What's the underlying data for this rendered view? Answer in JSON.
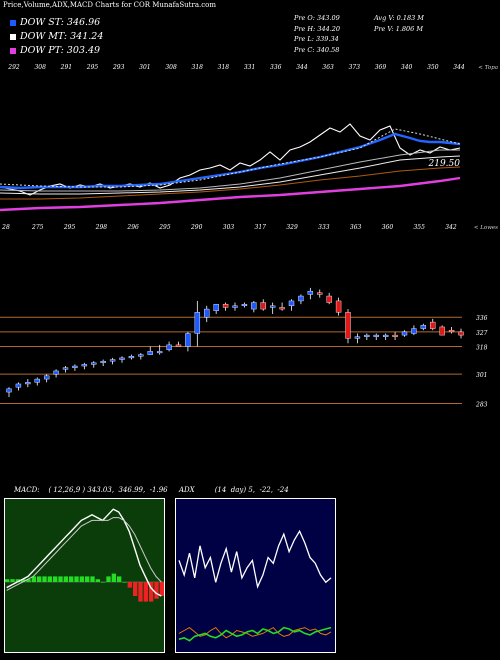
{
  "title": "Price,Volume,ADX,MACD Charts for COR MunafaSutra.com",
  "legend": [
    {
      "label": "DOW ST: 346.96",
      "color": "#1e5bff"
    },
    {
      "label": "DOW MT: 341.24",
      "color": "#ffffff"
    },
    {
      "label": "DOW PT: 303.49",
      "color": "#e040e0"
    }
  ],
  "stats_left": [
    "Pre  O: 343.09",
    "Pre  H: 344.20",
    "Pre  L: 339.34",
    "Pre  C: 340.58"
  ],
  "stats_right": [
    "Avg V: 0.183  M",
    "Pre  V: 1.806  M"
  ],
  "volume_axis_label": "< Topa",
  "lower_axis_label": "< Lowes",
  "top_labels": [
    "292",
    "308",
    "291",
    "295",
    "293",
    "301",
    "308",
    "318",
    "318",
    "331",
    "336",
    "344",
    "363",
    "373",
    "369",
    "340",
    "350",
    "344"
  ],
  "bottom_labels": [
    "28",
    "275",
    "295",
    "298",
    "296",
    "295",
    "290",
    "303",
    "317",
    "329",
    "333",
    "363",
    "360",
    "355",
    "342"
  ],
  "ema_value_label": "219.50",
  "chart_data": [
    {
      "type": "candlestick",
      "series": [
        {
          "name": "COR",
          "values": [
            {
              "o": 290,
              "h": 293,
              "l": 287,
              "c": 292
            },
            {
              "o": 293,
              "h": 296,
              "l": 291,
              "c": 295
            },
            {
              "o": 295,
              "h": 298,
              "l": 293,
              "c": 296
            },
            {
              "o": 296,
              "h": 299,
              "l": 294,
              "c": 298
            },
            {
              "o": 298,
              "h": 301,
              "l": 296,
              "c": 300
            },
            {
              "o": 301,
              "h": 304,
              "l": 299,
              "c": 303
            },
            {
              "o": 304,
              "h": 306,
              "l": 302,
              "c": 305
            },
            {
              "o": 305,
              "h": 307,
              "l": 303,
              "c": 306
            },
            {
              "o": 306,
              "h": 308,
              "l": 304,
              "c": 307
            },
            {
              "o": 307,
              "h": 309,
              "l": 305,
              "c": 308
            },
            {
              "o": 308,
              "h": 310,
              "l": 306,
              "c": 309
            },
            {
              "o": 309,
              "h": 311,
              "l": 307,
              "c": 310
            },
            {
              "o": 310,
              "h": 312,
              "l": 308,
              "c": 311
            },
            {
              "o": 311,
              "h": 313,
              "l": 310,
              "c": 312
            },
            {
              "o": 312,
              "h": 314,
              "l": 310,
              "c": 313
            },
            {
              "o": 313,
              "h": 318,
              "l": 313,
              "c": 315
            },
            {
              "o": 315,
              "h": 319,
              "l": 313,
              "c": 315
            },
            {
              "o": 316,
              "h": 321,
              "l": 315,
              "c": 319
            },
            {
              "o": 319,
              "h": 321,
              "l": 318,
              "c": 318
            },
            {
              "o": 318,
              "h": 327,
              "l": 315,
              "c": 326
            },
            {
              "o": 326,
              "h": 346,
              "l": 318,
              "c": 339
            },
            {
              "o": 336,
              "h": 343,
              "l": 333,
              "c": 341
            },
            {
              "o": 340,
              "h": 344,
              "l": 338,
              "c": 344
            },
            {
              "o": 344,
              "h": 345,
              "l": 340,
              "c": 342
            },
            {
              "o": 342,
              "h": 345,
              "l": 340,
              "c": 343
            },
            {
              "o": 343,
              "h": 345,
              "l": 342,
              "c": 344
            },
            {
              "o": 341,
              "h": 346,
              "l": 339,
              "c": 345
            },
            {
              "o": 345,
              "h": 347,
              "l": 340,
              "c": 341
            },
            {
              "o": 342,
              "h": 345,
              "l": 338,
              "c": 343
            },
            {
              "o": 342,
              "h": 345,
              "l": 340,
              "c": 341
            },
            {
              "o": 343,
              "h": 347,
              "l": 340,
              "c": 346
            },
            {
              "o": 346,
              "h": 350,
              "l": 344,
              "c": 349
            },
            {
              "o": 350,
              "h": 354,
              "l": 347,
              "c": 352
            },
            {
              "o": 351,
              "h": 353,
              "l": 348,
              "c": 350
            },
            {
              "o": 349,
              "h": 351,
              "l": 344,
              "c": 345
            },
            {
              "o": 346,
              "h": 348,
              "l": 337,
              "c": 339
            },
            {
              "o": 339,
              "h": 341,
              "l": 320,
              "c": 323
            },
            {
              "o": 323,
              "h": 326,
              "l": 320,
              "c": 324
            },
            {
              "o": 324,
              "h": 326,
              "l": 322,
              "c": 325
            },
            {
              "o": 324,
              "h": 326,
              "l": 322,
              "c": 325
            },
            {
              "o": 324,
              "h": 326,
              "l": 322,
              "c": 325
            },
            {
              "o": 325,
              "h": 327,
              "l": 322,
              "c": 324
            },
            {
              "o": 325,
              "h": 328,
              "l": 324,
              "c": 327
            },
            {
              "o": 326,
              "h": 331,
              "l": 325,
              "c": 329
            },
            {
              "o": 329,
              "h": 332,
              "l": 328,
              "c": 331
            },
            {
              "o": 333,
              "h": 335,
              "l": 328,
              "c": 329
            },
            {
              "o": 330,
              "h": 331,
              "l": 325,
              "c": 325
            },
            {
              "o": 328,
              "h": 330,
              "l": 326,
              "c": 327
            },
            {
              "o": 327,
              "h": 329,
              "l": 323,
              "c": 325
            }
          ]
        }
      ],
      "yticks": [
        {
          "label": "336",
          "value": 336
        },
        {
          "label": "327",
          "value": 327
        },
        {
          "label": "318",
          "value": 318
        },
        {
          "label": "301",
          "value": 301
        },
        {
          "label": "283",
          "value": 283
        }
      ],
      "ylim": [
        279,
        365
      ]
    },
    {
      "type": "line",
      "title": "MACD:",
      "values_text": "( 12,26,9 ) 343.03,  346.99,  -1.96",
      "series": [
        {
          "values": [
            -2,
            -1,
            0,
            1,
            2,
            4,
            6,
            8,
            10,
            12,
            14,
            16,
            18,
            20,
            22,
            23,
            24,
            23,
            22,
            24,
            26,
            25,
            22,
            18,
            12,
            6,
            2,
            -2,
            -4,
            -5
          ]
        },
        {
          "values": [
            -3,
            -2,
            -1,
            0,
            1,
            2,
            4,
            6,
            8,
            10,
            12,
            14,
            16,
            18,
            20,
            21,
            22,
            22,
            22,
            22,
            23,
            23,
            22,
            20,
            17,
            13,
            9,
            5,
            2,
            0
          ]
        }
      ],
      "histogram": [
        1,
        1,
        1,
        1,
        1,
        2,
        2,
        2,
        2,
        2,
        2,
        2,
        2,
        2,
        2,
        2,
        2,
        1,
        0,
        2,
        3,
        2,
        0,
        -2,
        -5,
        -7,
        -7,
        -7,
        -6,
        -5
      ],
      "ylim": [
        -25,
        30
      ]
    },
    {
      "type": "line",
      "title": "ADX",
      "values_text": "(14  day) 5,  -22,  -24",
      "series": [
        {
          "values": [
            60,
            50,
            65,
            48,
            70,
            55,
            62,
            45,
            58,
            68,
            52,
            66,
            48,
            55,
            60,
            42,
            50,
            62,
            58,
            70,
            78,
            66,
            74,
            80,
            72,
            62,
            58,
            50,
            45,
            48
          ]
        },
        {
          "values": [
            10,
            12,
            14,
            11,
            8,
            9,
            12,
            14,
            10,
            7,
            9,
            12,
            11,
            10,
            8,
            9,
            10,
            12,
            14,
            10,
            8,
            9,
            12,
            13,
            14,
            12,
            13,
            10,
            9,
            11
          ]
        },
        {
          "values": [
            6,
            7,
            5,
            8,
            9,
            10,
            8,
            7,
            9,
            12,
            10,
            8,
            9,
            11,
            12,
            10,
            13,
            12,
            10,
            11,
            14,
            13,
            11,
            12,
            10,
            9,
            11,
            12,
            13,
            14
          ]
        }
      ],
      "ylim": [
        0,
        100
      ]
    }
  ]
}
